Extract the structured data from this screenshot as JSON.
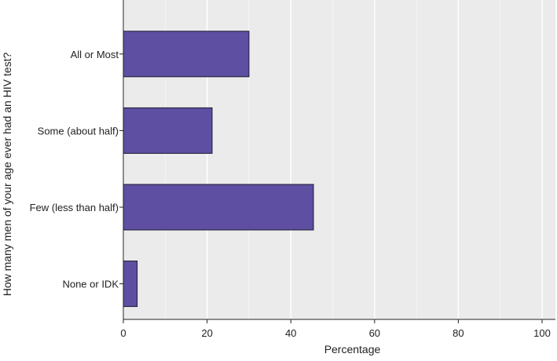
{
  "chart_data": {
    "type": "bar",
    "orientation": "horizontal",
    "title": "",
    "xlabel": "Percentage",
    "ylabel": "How many men of your age ever had an HIV test?",
    "categories": [
      "All or Most",
      "Some (about half)",
      "Few (less than half)",
      "None or IDK"
    ],
    "values": [
      30,
      21.2,
      45.4,
      3.3
    ],
    "xlim": [
      0,
      100
    ],
    "xticks": [
      0,
      20,
      40,
      60,
      80,
      100
    ],
    "xtick_labels": [
      "0",
      "20",
      "40",
      "60",
      "80",
      "100"
    ],
    "grid": true,
    "legend": "none",
    "colors": {
      "bar": "#5e4fa2",
      "bar_outline": "#1a1a2e",
      "panel": "#ebebeb",
      "grid": "#ffffff"
    }
  }
}
